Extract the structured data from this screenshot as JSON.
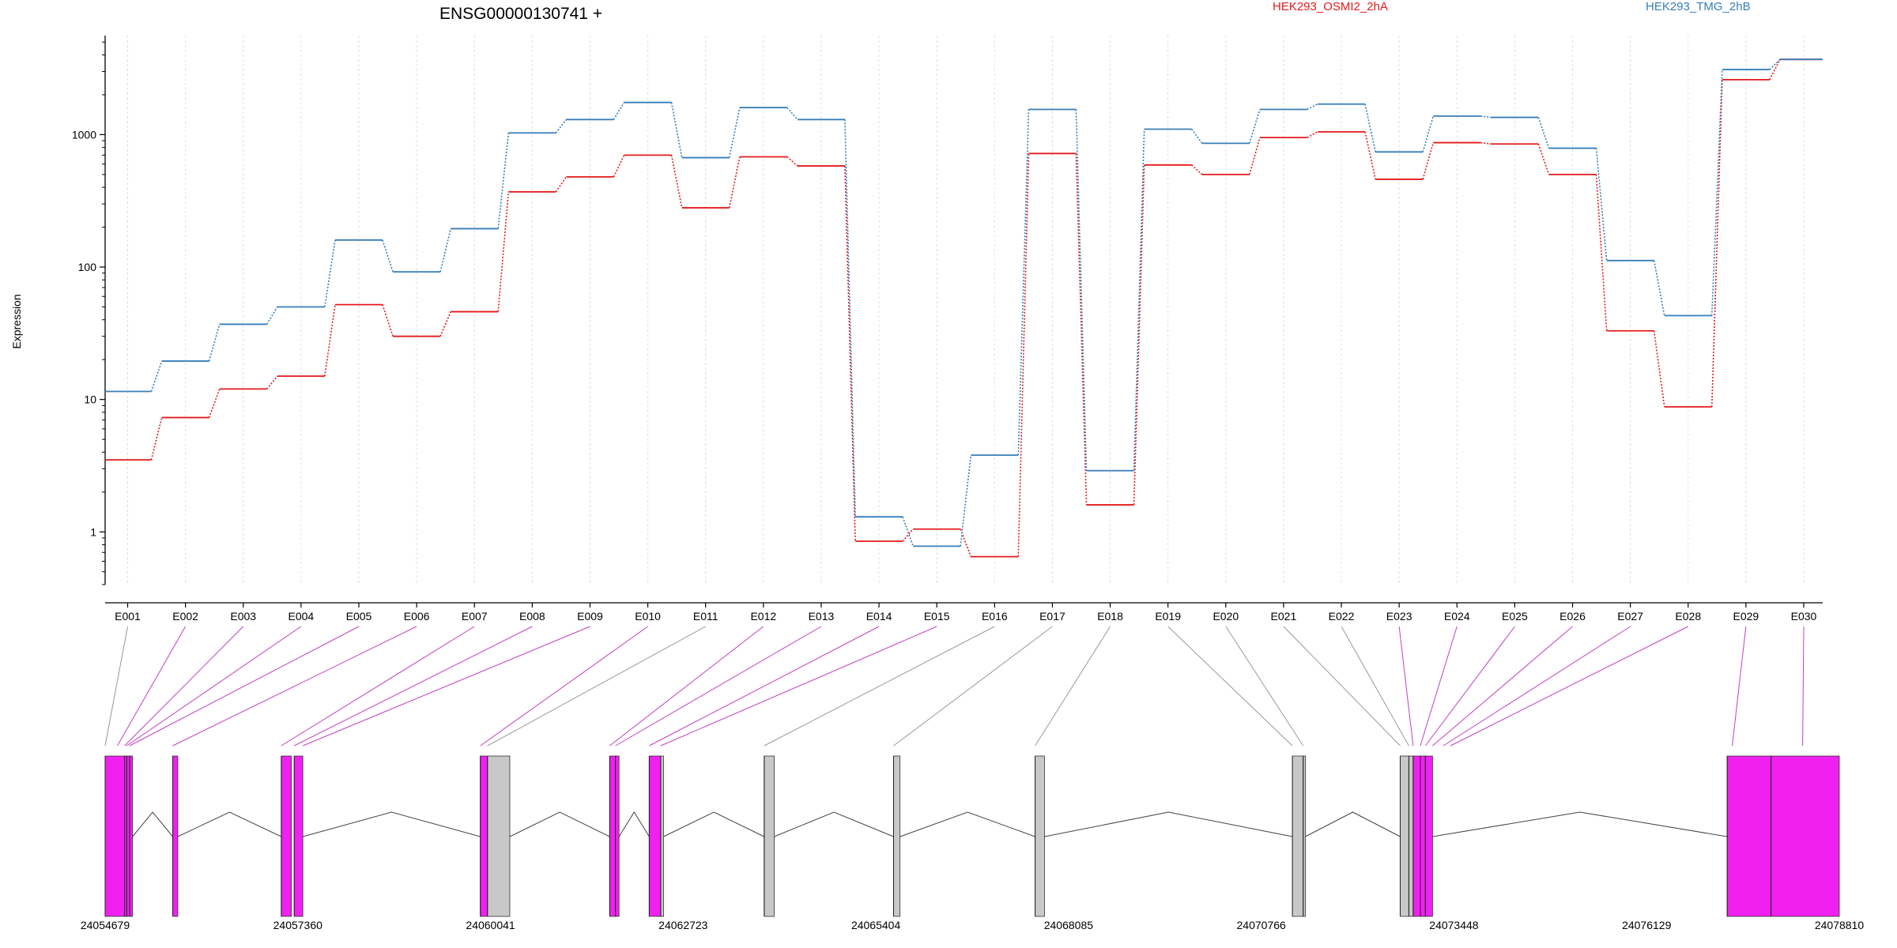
{
  "chart_data": {
    "type": "line",
    "title": "ENSG00000130741 +",
    "ylabel": "Expression",
    "yscale": "log",
    "ylim": [
      0.4,
      5600
    ],
    "grid": "vertical dashed",
    "legend_placement": "top",
    "y_ticks": [
      1,
      10,
      100,
      1000
    ],
    "y_tick_labels": [
      "1",
      "10",
      "100",
      "1000"
    ],
    "categories": [
      "E001",
      "E002",
      "E003",
      "E004",
      "E005",
      "E006",
      "E007",
      "E008",
      "E009",
      "E010",
      "E011",
      "E012",
      "E013",
      "E014",
      "E015",
      "E016",
      "E017",
      "E018",
      "E019",
      "E020",
      "E021",
      "E022",
      "E023",
      "E024",
      "E025",
      "E026",
      "E027",
      "E028",
      "E029",
      "E030"
    ],
    "series": [
      {
        "name": "HEK293_OSMI2_2hA",
        "color": "#e41a1c",
        "values": [
          3.5,
          7.3,
          12,
          15,
          52,
          30,
          46,
          370,
          480,
          700,
          280,
          680,
          580,
          0.85,
          1.05,
          0.65,
          720,
          1.6,
          590,
          500,
          950,
          1050,
          460,
          870,
          850,
          500,
          33,
          8.8,
          2600,
          3700
        ]
      },
      {
        "name": "HEK293_TMG_2hB",
        "color": "#377eb8",
        "values": [
          11.5,
          19.5,
          37,
          50,
          160,
          92,
          195,
          1030,
          1300,
          1750,
          670,
          1600,
          1300,
          1.3,
          0.78,
          3.8,
          1550,
          2.9,
          1100,
          860,
          1550,
          1700,
          740,
          1380,
          1350,
          790,
          112,
          43,
          3100,
          3700
        ]
      }
    ],
    "gene_model": {
      "coordinate_labels": [
        "24054679",
        "24057360",
        "24060041",
        "24062723",
        "24065404",
        "24068085",
        "24070766",
        "24073448",
        "24076129",
        "24078810"
      ],
      "coordinate_range": [
        24054679,
        24078810
      ],
      "exons": [
        {
          "start": 24054679,
          "end": 24054950,
          "color": "#f020f0"
        },
        {
          "start": 24054950,
          "end": 24054980,
          "color": "#f020f0"
        },
        {
          "start": 24054980,
          "end": 24055020,
          "color": "#f020f0"
        },
        {
          "start": 24055020,
          "end": 24055060,
          "color": "#f020f0"
        },
        {
          "start": 24055620,
          "end": 24055690,
          "color": "#f020f0"
        },
        {
          "start": 24057130,
          "end": 24057270,
          "color": "#f020f0"
        },
        {
          "start": 24057310,
          "end": 24057430,
          "color": "#f020f0"
        },
        {
          "start": 24059900,
          "end": 24060000,
          "color": "#f020f0"
        },
        {
          "start": 24060000,
          "end": 24060310,
          "color": "#c8c8c8"
        },
        {
          "start": 24061700,
          "end": 24061780,
          "color": "#f020f0"
        },
        {
          "start": 24061780,
          "end": 24061830,
          "color": "#f020f0"
        },
        {
          "start": 24062250,
          "end": 24062410,
          "color": "#f020f0"
        },
        {
          "start": 24062410,
          "end": 24062450,
          "color": "#c8c8c8"
        },
        {
          "start": 24063850,
          "end": 24063990,
          "color": "#c8c8c8"
        },
        {
          "start": 24065650,
          "end": 24065740,
          "color": "#c8c8c8"
        },
        {
          "start": 24067620,
          "end": 24067750,
          "color": "#c8c8c8"
        },
        {
          "start": 24071200,
          "end": 24071350,
          "color": "#c8c8c8"
        },
        {
          "start": 24071350,
          "end": 24071380,
          "color": "#c8c8c8"
        },
        {
          "start": 24072700,
          "end": 24072820,
          "color": "#c8c8c8"
        },
        {
          "start": 24072820,
          "end": 24072880,
          "color": "#c8c8c8"
        },
        {
          "start": 24072880,
          "end": 24072980,
          "color": "#f020f0"
        },
        {
          "start": 24072980,
          "end": 24073050,
          "color": "#f020f0"
        },
        {
          "start": 24073050,
          "end": 24073150,
          "color": "#f020f0"
        },
        {
          "start": 24077250,
          "end": 24077860,
          "color": "#f020f0"
        },
        {
          "start": 24077860,
          "end": 24078810,
          "color": "#f020f0"
        }
      ],
      "exon_bin_starts": [
        24054679,
        24054950,
        24054980,
        24055020,
        24055620,
        24057130,
        24057310,
        24059900,
        24060000,
        24061700,
        24061780,
        24062250,
        24062410,
        24063850,
        24065650,
        24067620,
        24071200,
        24071350,
        24072700,
        24072820,
        24072880,
        24072980,
        24073050,
        24077250,
        24077860
      ],
      "connector_targets": [
        24054679,
        24054850,
        24054950,
        24054980,
        24055020,
        24055620,
        24057130,
        24057310,
        24057430,
        24059900,
        24060000,
        24061700,
        24061780,
        24062250,
        24062410,
        24063850,
        24065650,
        24067620,
        24071200,
        24071350,
        24072700,
        24072820,
        24072880,
        24072980,
        24073050,
        24073150,
        24073300,
        24073400,
        24077320,
        24078300
      ],
      "connector_colors": [
        "#999999",
        "#c040c0",
        "#c040c0",
        "#c040c0",
        "#c040c0",
        "#c040c0",
        "#c040c0",
        "#c040c0",
        "#c040c0",
        "#c040c0",
        "#999999",
        "#c040c0",
        "#c040c0",
        "#c040c0",
        "#c040c0",
        "#999999",
        "#999999",
        "#999999",
        "#999999",
        "#999999",
        "#999999",
        "#999999",
        "#c040c0",
        "#c040c0",
        "#c040c0",
        "#c040c0",
        "#c040c0",
        "#c040c0",
        "#c040c0",
        "#c040c0"
      ]
    }
  }
}
